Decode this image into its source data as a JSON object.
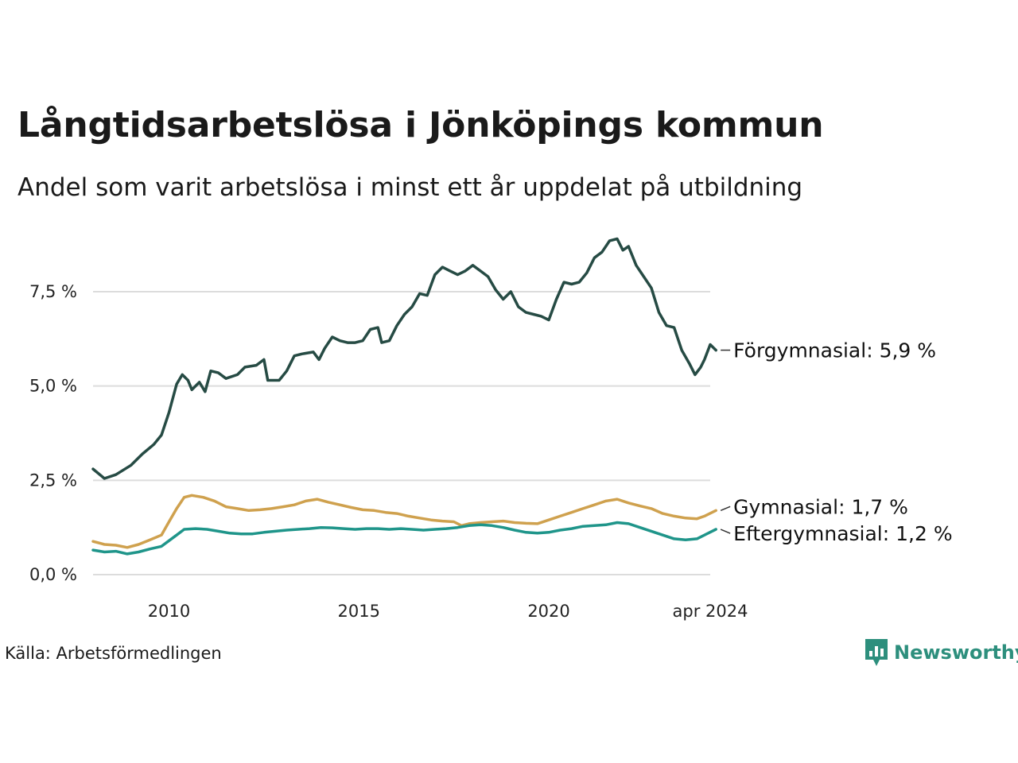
{
  "header": {
    "title": "Långtidsarbetslösa i Jönköpings kommun",
    "subtitle": "Andel som varit arbetslösa i minst ett år uppdelat på utbildning"
  },
  "footer": {
    "source": "Källa: Arbetsförmedlingen",
    "brand": "Newsworthy"
  },
  "colors": {
    "forgymnasial": "#264b44",
    "gymnasial": "#cfa14e",
    "eftergymnasial": "#1f958a",
    "grid": "#dcdcdc",
    "brand": "#2d8f7d"
  },
  "chart_data": {
    "type": "line",
    "x_start": "2008-01",
    "x_end": "2024-04",
    "xlim": [
      2008.0,
      2024.25
    ],
    "ylim": [
      0,
      9
    ],
    "grid": true,
    "y_ticks": [
      0,
      2.5,
      5,
      7.5
    ],
    "y_tick_labels": [
      "0,0 %",
      "2,5 %",
      "5,0 %",
      "7,5 %"
    ],
    "x_ticks": [
      2010,
      2015,
      2020,
      2024.25
    ],
    "x_tick_labels": [
      "2010",
      "2015",
      "2020",
      "apr 2024"
    ],
    "series": [
      {
        "name": "Förgymnasial",
        "label": "Förgymnasial: 5,9 %",
        "color": "#264b44",
        "points": [
          [
            2008.0,
            2.8
          ],
          [
            2008.3,
            2.55
          ],
          [
            2008.6,
            2.65
          ],
          [
            2009.0,
            2.9
          ],
          [
            2009.3,
            3.2
          ],
          [
            2009.6,
            3.45
          ],
          [
            2009.8,
            3.7
          ],
          [
            2010.0,
            4.3
          ],
          [
            2010.2,
            5.05
          ],
          [
            2010.35,
            5.3
          ],
          [
            2010.5,
            5.15
          ],
          [
            2010.6,
            4.9
          ],
          [
            2010.8,
            5.1
          ],
          [
            2010.95,
            4.85
          ],
          [
            2011.1,
            5.4
          ],
          [
            2011.3,
            5.35
          ],
          [
            2011.5,
            5.2
          ],
          [
            2011.8,
            5.3
          ],
          [
            2012.0,
            5.5
          ],
          [
            2012.3,
            5.55
          ],
          [
            2012.5,
            5.7
          ],
          [
            2012.6,
            5.15
          ],
          [
            2012.9,
            5.15
          ],
          [
            2013.1,
            5.4
          ],
          [
            2013.3,
            5.8
          ],
          [
            2013.5,
            5.85
          ],
          [
            2013.8,
            5.9
          ],
          [
            2013.95,
            5.7
          ],
          [
            2014.1,
            6.0
          ],
          [
            2014.3,
            6.3
          ],
          [
            2014.5,
            6.2
          ],
          [
            2014.7,
            6.15
          ],
          [
            2014.9,
            6.15
          ],
          [
            2015.1,
            6.2
          ],
          [
            2015.3,
            6.5
          ],
          [
            2015.5,
            6.55
          ],
          [
            2015.6,
            6.15
          ],
          [
            2015.8,
            6.2
          ],
          [
            2016.0,
            6.6
          ],
          [
            2016.2,
            6.9
          ],
          [
            2016.4,
            7.1
          ],
          [
            2016.6,
            7.45
          ],
          [
            2016.8,
            7.4
          ],
          [
            2017.0,
            7.95
          ],
          [
            2017.2,
            8.15
          ],
          [
            2017.4,
            8.05
          ],
          [
            2017.6,
            7.95
          ],
          [
            2017.8,
            8.05
          ],
          [
            2018.0,
            8.2
          ],
          [
            2018.2,
            8.05
          ],
          [
            2018.4,
            7.9
          ],
          [
            2018.6,
            7.55
          ],
          [
            2018.8,
            7.3
          ],
          [
            2019.0,
            7.5
          ],
          [
            2019.2,
            7.1
          ],
          [
            2019.4,
            6.95
          ],
          [
            2019.6,
            6.9
          ],
          [
            2019.8,
            6.85
          ],
          [
            2020.0,
            6.75
          ],
          [
            2020.2,
            7.3
          ],
          [
            2020.4,
            7.75
          ],
          [
            2020.6,
            7.7
          ],
          [
            2020.8,
            7.75
          ],
          [
            2021.0,
            8.0
          ],
          [
            2021.2,
            8.4
          ],
          [
            2021.4,
            8.55
          ],
          [
            2021.6,
            8.85
          ],
          [
            2021.8,
            8.9
          ],
          [
            2021.95,
            8.6
          ],
          [
            2022.1,
            8.7
          ],
          [
            2022.3,
            8.2
          ],
          [
            2022.5,
            7.9
          ],
          [
            2022.7,
            7.6
          ],
          [
            2022.9,
            6.95
          ],
          [
            2023.1,
            6.6
          ],
          [
            2023.3,
            6.55
          ],
          [
            2023.5,
            5.95
          ],
          [
            2023.7,
            5.6
          ],
          [
            2023.85,
            5.3
          ],
          [
            2024.0,
            5.5
          ],
          [
            2024.1,
            5.7
          ],
          [
            2024.25,
            6.1
          ],
          [
            2024.4,
            5.95
          ]
        ]
      },
      {
        "name": "Gymnasial",
        "label": "Gymnasial: 1,7 %",
        "color": "#cfa14e",
        "points": [
          [
            2008.0,
            0.88
          ],
          [
            2008.3,
            0.8
          ],
          [
            2008.6,
            0.78
          ],
          [
            2008.9,
            0.72
          ],
          [
            2009.2,
            0.8
          ],
          [
            2009.5,
            0.92
          ],
          [
            2009.8,
            1.05
          ],
          [
            2010.0,
            1.4
          ],
          [
            2010.2,
            1.75
          ],
          [
            2010.4,
            2.05
          ],
          [
            2010.6,
            2.1
          ],
          [
            2010.9,
            2.05
          ],
          [
            2011.2,
            1.95
          ],
          [
            2011.5,
            1.8
          ],
          [
            2011.8,
            1.75
          ],
          [
            2012.1,
            1.7
          ],
          [
            2012.4,
            1.72
          ],
          [
            2012.7,
            1.75
          ],
          [
            2013.0,
            1.8
          ],
          [
            2013.3,
            1.85
          ],
          [
            2013.6,
            1.95
          ],
          [
            2013.9,
            2.0
          ],
          [
            2014.2,
            1.92
          ],
          [
            2014.5,
            1.85
          ],
          [
            2014.8,
            1.78
          ],
          [
            2015.1,
            1.72
          ],
          [
            2015.4,
            1.7
          ],
          [
            2015.7,
            1.65
          ],
          [
            2016.0,
            1.62
          ],
          [
            2016.3,
            1.55
          ],
          [
            2016.6,
            1.5
          ],
          [
            2016.9,
            1.45
          ],
          [
            2017.2,
            1.42
          ],
          [
            2017.5,
            1.4
          ],
          [
            2017.7,
            1.3
          ],
          [
            2017.9,
            1.35
          ],
          [
            2018.2,
            1.38
          ],
          [
            2018.5,
            1.4
          ],
          [
            2018.8,
            1.42
          ],
          [
            2019.1,
            1.38
          ],
          [
            2019.4,
            1.36
          ],
          [
            2019.7,
            1.35
          ],
          [
            2020.0,
            1.45
          ],
          [
            2020.3,
            1.55
          ],
          [
            2020.6,
            1.65
          ],
          [
            2020.9,
            1.75
          ],
          [
            2021.2,
            1.85
          ],
          [
            2021.5,
            1.95
          ],
          [
            2021.8,
            2.0
          ],
          [
            2022.1,
            1.9
          ],
          [
            2022.4,
            1.82
          ],
          [
            2022.7,
            1.75
          ],
          [
            2023.0,
            1.62
          ],
          [
            2023.3,
            1.55
          ],
          [
            2023.6,
            1.5
          ],
          [
            2023.9,
            1.48
          ],
          [
            2024.1,
            1.55
          ],
          [
            2024.4,
            1.7
          ]
        ]
      },
      {
        "name": "Eftergymnasial",
        "label": "Eftergymnasial: 1,2 %",
        "color": "#1f958a",
        "points": [
          [
            2008.0,
            0.65
          ],
          [
            2008.3,
            0.6
          ],
          [
            2008.6,
            0.62
          ],
          [
            2008.9,
            0.55
          ],
          [
            2009.2,
            0.6
          ],
          [
            2009.5,
            0.68
          ],
          [
            2009.8,
            0.75
          ],
          [
            2010.0,
            0.9
          ],
          [
            2010.2,
            1.05
          ],
          [
            2010.4,
            1.2
          ],
          [
            2010.7,
            1.22
          ],
          [
            2011.0,
            1.2
          ],
          [
            2011.3,
            1.15
          ],
          [
            2011.6,
            1.1
          ],
          [
            2011.9,
            1.08
          ],
          [
            2012.2,
            1.08
          ],
          [
            2012.5,
            1.12
          ],
          [
            2012.8,
            1.15
          ],
          [
            2013.1,
            1.18
          ],
          [
            2013.4,
            1.2
          ],
          [
            2013.7,
            1.22
          ],
          [
            2014.0,
            1.25
          ],
          [
            2014.3,
            1.24
          ],
          [
            2014.6,
            1.22
          ],
          [
            2014.9,
            1.2
          ],
          [
            2015.2,
            1.22
          ],
          [
            2015.5,
            1.22
          ],
          [
            2015.8,
            1.2
          ],
          [
            2016.1,
            1.22
          ],
          [
            2016.4,
            1.2
          ],
          [
            2016.7,
            1.18
          ],
          [
            2017.0,
            1.2
          ],
          [
            2017.3,
            1.22
          ],
          [
            2017.6,
            1.25
          ],
          [
            2017.9,
            1.3
          ],
          [
            2018.2,
            1.32
          ],
          [
            2018.5,
            1.3
          ],
          [
            2018.8,
            1.25
          ],
          [
            2019.1,
            1.18
          ],
          [
            2019.4,
            1.12
          ],
          [
            2019.7,
            1.1
          ],
          [
            2020.0,
            1.12
          ],
          [
            2020.3,
            1.18
          ],
          [
            2020.6,
            1.22
          ],
          [
            2020.9,
            1.28
          ],
          [
            2021.2,
            1.3
          ],
          [
            2021.5,
            1.32
          ],
          [
            2021.8,
            1.38
          ],
          [
            2022.1,
            1.35
          ],
          [
            2022.4,
            1.25
          ],
          [
            2022.7,
            1.15
          ],
          [
            2023.0,
            1.05
          ],
          [
            2023.3,
            0.95
          ],
          [
            2023.6,
            0.92
          ],
          [
            2023.9,
            0.95
          ],
          [
            2024.1,
            1.05
          ],
          [
            2024.4,
            1.2
          ]
        ]
      }
    ]
  }
}
